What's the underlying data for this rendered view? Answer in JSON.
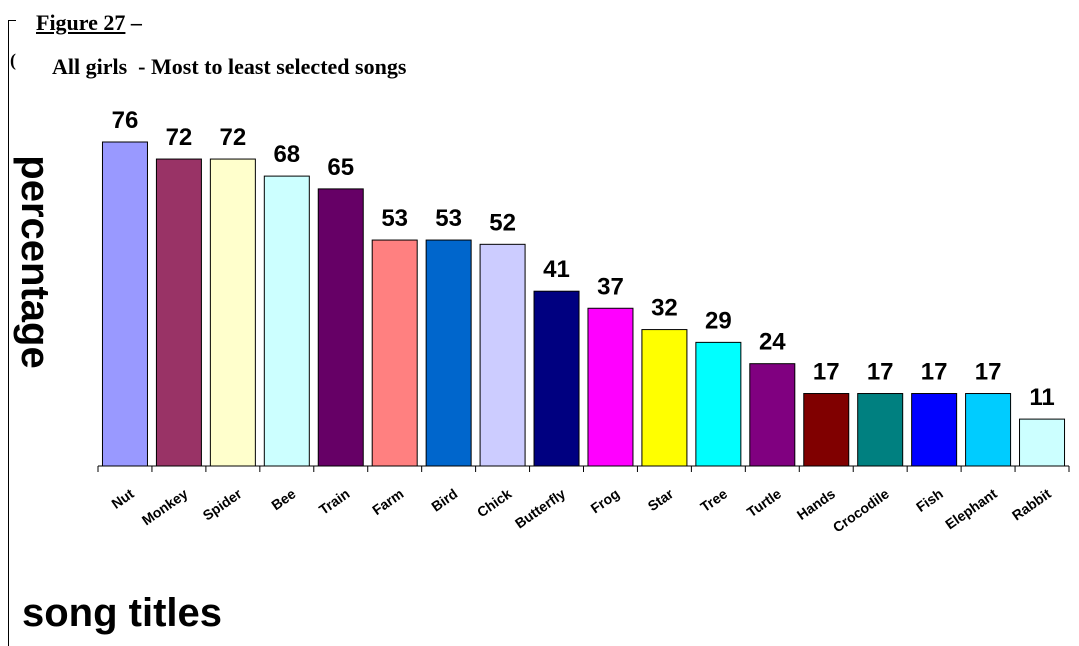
{
  "figure": {
    "label_prefix": "Figure 27",
    "label_suffix": " –",
    "title": "All girls  - Most to least selected songs",
    "stray_mark": "("
  },
  "chart_data": {
    "type": "bar",
    "title": "All girls  - Most to least selected songs",
    "xlabel": "song titles",
    "ylabel": "percentage",
    "categories": [
      "Nut",
      "Monkey",
      "Spider",
      "Bee",
      "Train",
      "Farm",
      "Bird",
      "Chick",
      "Butterfly",
      "Frog",
      "Star",
      "Tree",
      "Turtle",
      "Hands",
      "Crocodile",
      "Fish",
      "Elephant",
      "Rabbit"
    ],
    "values": [
      76,
      72,
      72,
      68,
      65,
      53,
      53,
      52,
      41,
      37,
      32,
      29,
      24,
      17,
      17,
      17,
      17,
      11
    ],
    "colors": [
      "#9999ff",
      "#993366",
      "#ffffcc",
      "#ccffff",
      "#660066",
      "#ff8080",
      "#0066cc",
      "#ccccff",
      "#000080",
      "#ff00ff",
      "#ffff00",
      "#00ffff",
      "#800080",
      "#800000",
      "#008080",
      "#0000ff",
      "#00ccff",
      "#ccffff"
    ],
    "ylim": [
      0,
      76
    ],
    "grid": false,
    "legend": "none"
  }
}
